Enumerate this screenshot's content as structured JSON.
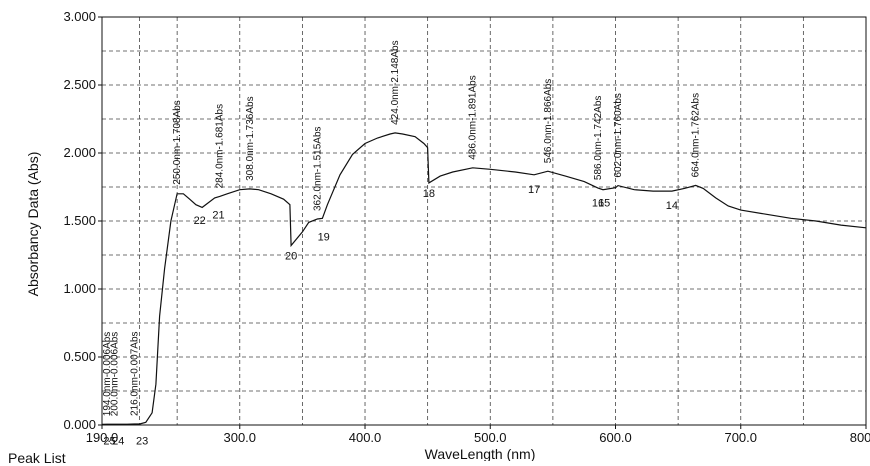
{
  "footer_text": "Peak List",
  "chart_data": {
    "type": "line",
    "xlabel": "WaveLength (nm)",
    "ylabel": "Absorbancy Data (Abs)",
    "xlim": [
      190,
      800
    ],
    "ylim": [
      0,
      3.0
    ],
    "x_ticks": [
      {
        "value": 190,
        "label": "190.0"
      },
      {
        "value": 300,
        "label": "300.0"
      },
      {
        "value": 400,
        "label": "400.0"
      },
      {
        "value": 500,
        "label": "500.0"
      },
      {
        "value": 600,
        "label": "600.0"
      },
      {
        "value": 700,
        "label": "700.0"
      },
      {
        "value": 800,
        "label": "800.0"
      }
    ],
    "y_ticks": [
      {
        "value": 0.0,
        "label": "0.000"
      },
      {
        "value": 0.5,
        "label": "0.500"
      },
      {
        "value": 1.0,
        "label": "1.000"
      },
      {
        "value": 1.5,
        "label": "1.500"
      },
      {
        "value": 2.0,
        "label": "2.000"
      },
      {
        "value": 2.5,
        "label": "2.500"
      },
      {
        "value": 3.0,
        "label": "3.000"
      }
    ],
    "x_grid_values": [
      220,
      250,
      350,
      450,
      550,
      650,
      750
    ],
    "y_grid_values": [
      0.25,
      0.75,
      1.25,
      1.75,
      2.25,
      2.75
    ],
    "grid": true,
    "series": [
      {
        "x": [
          190,
          194,
          200,
          210,
          216,
          220,
          225,
          230,
          233,
          236,
          240,
          245,
          250,
          255,
          260,
          265,
          270,
          280,
          284,
          290,
          300,
          308,
          315,
          325,
          335,
          340,
          341,
          350,
          355,
          362,
          366,
          370,
          380,
          390,
          400,
          410,
          420,
          424,
          430,
          440,
          447,
          450,
          451,
          460,
          470,
          486,
          500,
          520,
          535,
          546,
          560,
          575,
          586,
          590,
          600,
          602,
          615,
          630,
          645,
          655,
          664,
          670,
          680,
          690,
          700,
          720,
          740,
          760,
          780,
          800
        ],
        "y": [
          0.005,
          0.006,
          0.006,
          0.006,
          0.007,
          0.007,
          0.02,
          0.09,
          0.3,
          0.8,
          1.15,
          1.5,
          1.7,
          1.7,
          1.66,
          1.62,
          1.6,
          1.67,
          1.681,
          1.7,
          1.73,
          1.736,
          1.73,
          1.7,
          1.66,
          1.62,
          1.32,
          1.42,
          1.49,
          1.515,
          1.52,
          1.62,
          1.84,
          1.99,
          2.07,
          2.11,
          2.14,
          2.148,
          2.14,
          2.12,
          2.07,
          2.04,
          1.78,
          1.83,
          1.86,
          1.891,
          1.88,
          1.86,
          1.84,
          1.866,
          1.83,
          1.79,
          1.742,
          1.73,
          1.745,
          1.76,
          1.73,
          1.72,
          1.72,
          1.74,
          1.762,
          1.74,
          1.67,
          1.61,
          1.58,
          1.55,
          1.52,
          1.5,
          1.47,
          1.45
        ]
      }
    ],
    "peak_labels": [
      {
        "x": 194.0,
        "y": 0.006,
        "text": "194.0nm-0.006Abs"
      },
      {
        "x": 200.0,
        "y": 0.006,
        "text": "200.0nm-0.006Abs"
      },
      {
        "x": 216.0,
        "y": 0.007,
        "text": "216.0nm-0.007Abs"
      },
      {
        "x": 250.0,
        "y": 1.708,
        "text": "250.0nm-1.708Abs"
      },
      {
        "x": 284.0,
        "y": 1.681,
        "text": "284.0nm-1.681Abs"
      },
      {
        "x": 308.0,
        "y": 1.736,
        "text": "308.0nm-1.736Abs"
      },
      {
        "x": 362.0,
        "y": 1.515,
        "text": "362.0nm-1.515Abs"
      },
      {
        "x": 424.0,
        "y": 2.148,
        "text": "424.0nm-2.148Abs"
      },
      {
        "x": 486.0,
        "y": 1.891,
        "text": "486.0nm-1.891Abs"
      },
      {
        "x": 546.0,
        "y": 1.866,
        "text": "546.0nm-1.866Abs"
      },
      {
        "x": 586.0,
        "y": 1.742,
        "text": "586.0nm-1.742Abs"
      },
      {
        "x": 602.0,
        "y": 1.76,
        "text": "602.0nm-1.760Abs"
      },
      {
        "x": 664.0,
        "y": 1.762,
        "text": "664.0nm-1.762Abs"
      }
    ],
    "valley_numbers": [
      {
        "x": 196,
        "y": -0.04,
        "text": "25"
      },
      {
        "x": 203,
        "y": -0.04,
        "text": "24"
      },
      {
        "x": 222,
        "y": -0.04,
        "text": "23"
      },
      {
        "x": 268,
        "y": 1.58,
        "text": "22"
      },
      {
        "x": 283,
        "y": 1.62,
        "text": "21"
      },
      {
        "x": 341,
        "y": 1.32,
        "text": "20"
      },
      {
        "x": 367,
        "y": 1.46,
        "text": "19"
      },
      {
        "x": 451,
        "y": 1.78,
        "text": "18"
      },
      {
        "x": 535,
        "y": 1.81,
        "text": "17"
      },
      {
        "x": 586,
        "y": 1.71,
        "text": "16"
      },
      {
        "x": 591,
        "y": 1.71,
        "text": "15"
      },
      {
        "x": 645,
        "y": 1.69,
        "text": "14"
      }
    ]
  }
}
